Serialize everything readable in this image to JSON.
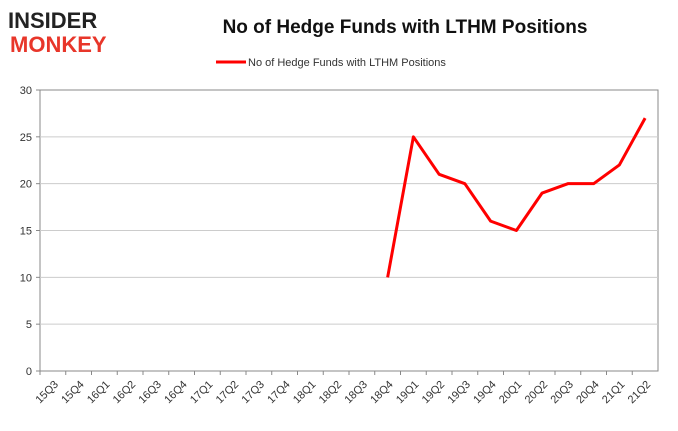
{
  "logo": {
    "line1": "INSIDER",
    "line2": "MONKEY",
    "colors": {
      "line1": "#222222",
      "line2": "#e8362a"
    }
  },
  "chart_data": {
    "type": "line",
    "title": "No of Hedge Funds with LTHM Positions",
    "xlabel": "",
    "ylabel": "",
    "categories": [
      "15Q3",
      "15Q4",
      "16Q1",
      "16Q2",
      "16Q3",
      "16Q4",
      "17Q1",
      "17Q2",
      "17Q3",
      "17Q4",
      "18Q1",
      "18Q2",
      "18Q3",
      "18Q4",
      "19Q1",
      "19Q2",
      "19Q3",
      "19Q4",
      "20Q1",
      "20Q2",
      "20Q3",
      "20Q4",
      "21Q1",
      "21Q2"
    ],
    "series": [
      {
        "name": "No of Hedge Funds with LTHM Positions",
        "color": "#ff0000",
        "values": [
          null,
          null,
          null,
          null,
          null,
          null,
          null,
          null,
          null,
          null,
          null,
          null,
          null,
          10,
          25,
          21,
          20,
          16,
          15,
          19,
          20,
          20,
          22,
          27
        ]
      }
    ],
    "ylim": [
      0,
      30
    ],
    "yticks": [
      0,
      5,
      10,
      15,
      20,
      25,
      30
    ],
    "grid": true,
    "legend_position": "top-center"
  }
}
